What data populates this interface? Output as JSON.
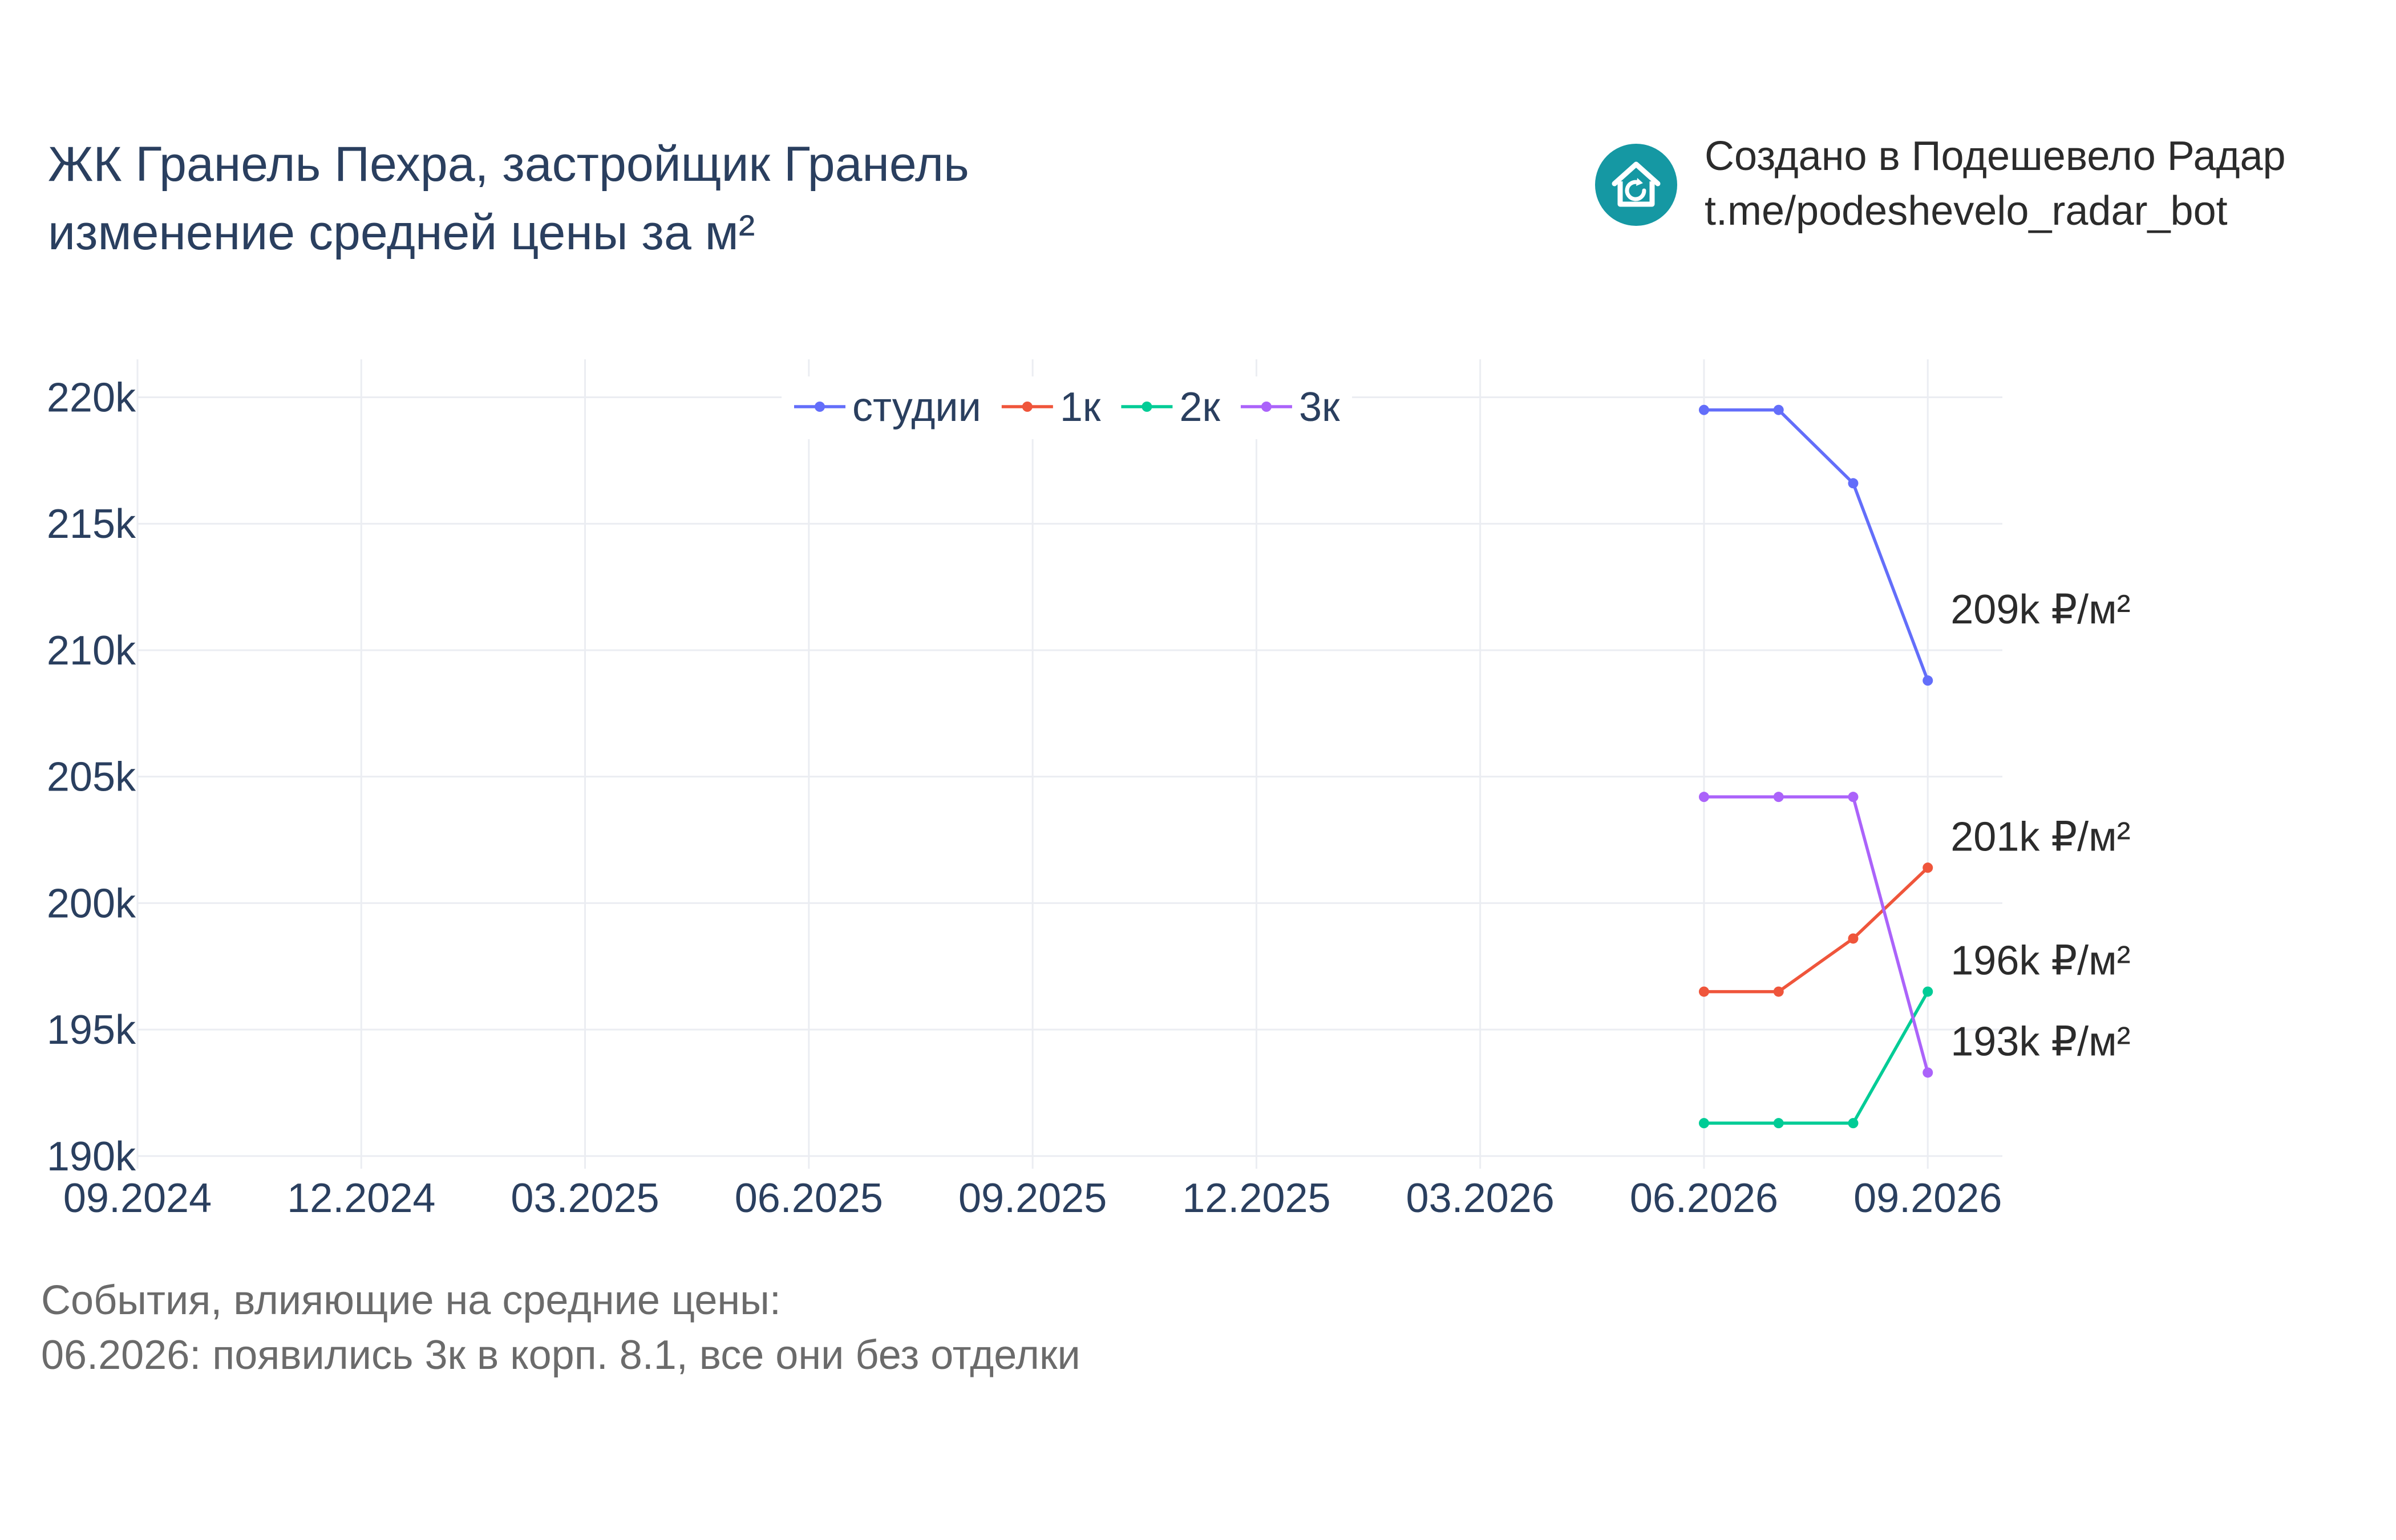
{
  "header": {
    "title_line1": "ЖК Гранель Пехра, застройщик Гранель",
    "title_line2": "изменение средней цены за м²"
  },
  "brand": {
    "line1": "Создано в Подешевело Радар",
    "line2": "t.me/podeshevelo_radar_bot",
    "icon": "house-refresh-icon",
    "color": "#1598a3"
  },
  "chart_data": {
    "type": "line",
    "x_ticks": [
      "09.2024",
      "12.2024",
      "03.2025",
      "06.2025",
      "09.2025",
      "12.2025",
      "03.2026",
      "06.2026",
      "09.2026"
    ],
    "xlim": [
      "2024-09",
      "2026-10"
    ],
    "y_ticks": [
      "190k",
      "195k",
      "200k",
      "205k",
      "210k",
      "215k",
      "220k"
    ],
    "ylim": [
      189500,
      221500
    ],
    "grid": true,
    "legend_position": "top-center",
    "series": [
      {
        "name": "студии",
        "color": "#636efa",
        "x": [
          "2026-06",
          "2026-07",
          "2026-08",
          "2026-09"
        ],
        "y": [
          219500,
          219500,
          216600,
          208800
        ],
        "end_label": "209k ₽/м²"
      },
      {
        "name": "1к",
        "color": "#ef553b",
        "x": [
          "2026-06",
          "2026-07",
          "2026-08",
          "2026-09"
        ],
        "y": [
          196500,
          196500,
          198600,
          201400
        ],
        "end_label": "201k ₽/м²"
      },
      {
        "name": "2к",
        "color": "#00cc96",
        "x": [
          "2026-06",
          "2026-07",
          "2026-08",
          "2026-09"
        ],
        "y": [
          191300,
          191300,
          191300,
          196500
        ],
        "end_label": "196k ₽/м²"
      },
      {
        "name": "3к",
        "color": "#ab63fa",
        "x": [
          "2026-06",
          "2026-07",
          "2026-08",
          "2026-09"
        ],
        "y": [
          204200,
          204200,
          204200,
          193300
        ],
        "end_label": "193k ₽/м²"
      }
    ]
  },
  "events": {
    "heading": "События, влияющие на средние цены:",
    "line1": "06.2026: появились 3к в корп. 8.1, все они без отделки"
  }
}
